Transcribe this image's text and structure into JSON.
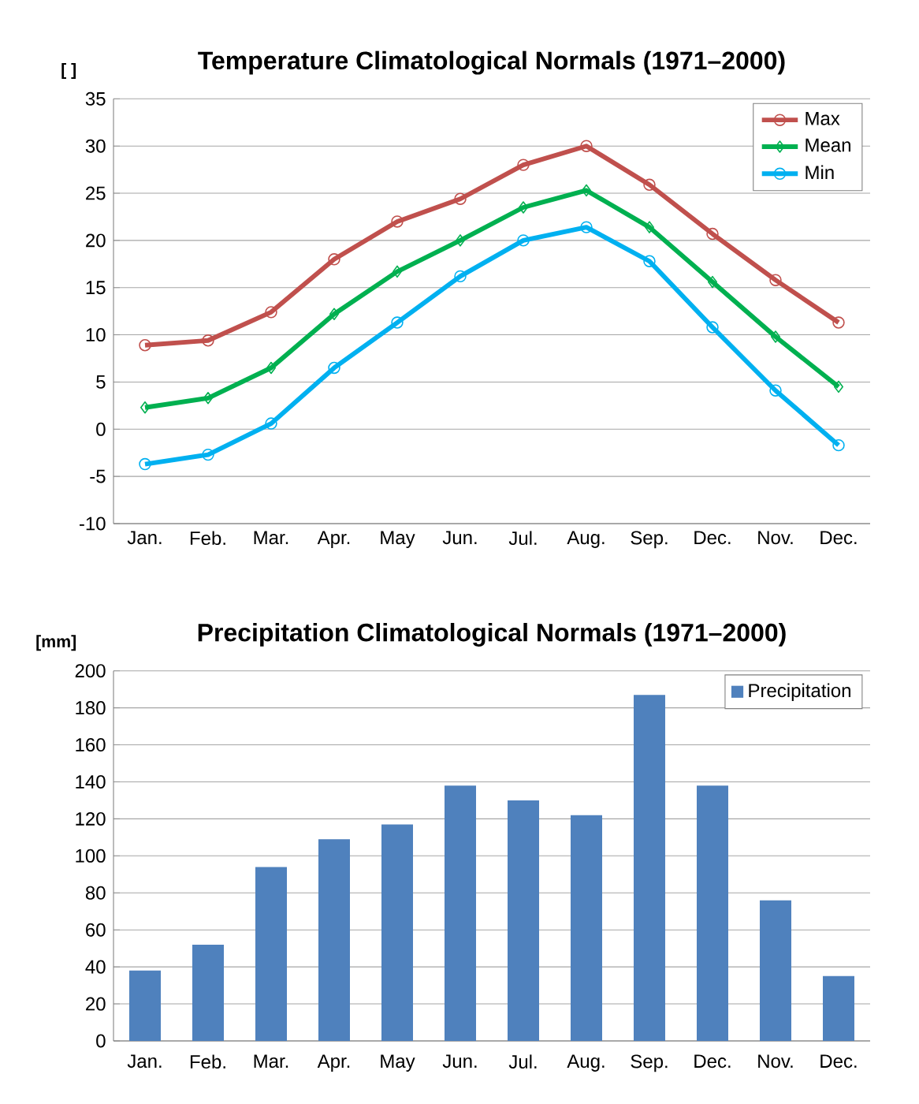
{
  "chart_data": [
    {
      "type": "line",
      "title": "Temperature Climatological Normals (1971–2000)",
      "ylabel": "[ ]",
      "categories": [
        "Jan.",
        "Feb.",
        "Mar.",
        "Apr.",
        "May",
        "Jun.",
        "Jul.",
        "Aug.",
        "Sep.",
        "Dec.",
        "Nov.",
        "Dec."
      ],
      "series": [
        {
          "name": "Max",
          "color": "#c0504d",
          "marker": "circle",
          "values": [
            8.9,
            9.4,
            12.4,
            18,
            22,
            24.4,
            28,
            30,
            25.9,
            20.7,
            15.8,
            11.3
          ]
        },
        {
          "name": "Mean",
          "color": "#00b050",
          "marker": "diamond",
          "values": [
            2.3,
            3.3,
            6.5,
            12.2,
            16.7,
            20,
            23.5,
            25.3,
            21.4,
            15.6,
            9.8,
            4.5
          ]
        },
        {
          "name": "Min",
          "color": "#00b0f0",
          "marker": "circle",
          "values": [
            -3.7,
            -2.7,
            0.6,
            6.5,
            11.3,
            16.2,
            20,
            21.4,
            17.8,
            10.8,
            4.1,
            -1.7
          ]
        }
      ],
      "ylim": [
        -10,
        35
      ],
      "yticks": [
        -10,
        -5,
        0,
        5,
        10,
        15,
        20,
        25,
        30,
        35
      ],
      "grid": "y",
      "legend": "top right"
    },
    {
      "type": "bar",
      "title": "Precipitation Climatological Normals (1971–2000)",
      "ylabel": "[mm]",
      "categories": [
        "Jan.",
        "Feb.",
        "Mar.",
        "Apr.",
        "May",
        "Jun.",
        "Jul.",
        "Aug.",
        "Sep.",
        "Dec.",
        "Nov.",
        "Dec."
      ],
      "series": [
        {
          "name": "Precipitation",
          "color": "#4f81bd",
          "values": [
            38,
            52,
            94,
            109,
            117,
            138,
            130,
            122,
            187,
            138,
            76,
            35
          ]
        }
      ],
      "ylim": [
        0,
        200
      ],
      "yticks": [
        0,
        20,
        40,
        60,
        80,
        100,
        120,
        140,
        160,
        180,
        200
      ],
      "grid": "y",
      "legend": "top right"
    }
  ]
}
